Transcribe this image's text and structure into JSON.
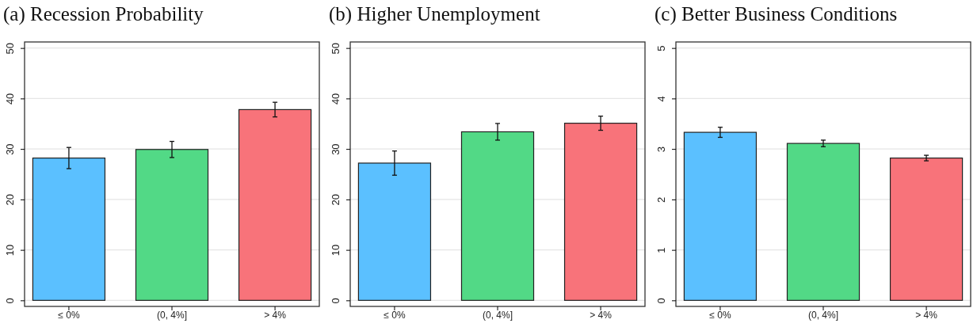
{
  "chart_data": [
    {
      "type": "bar",
      "title": "(a) Recession Probability",
      "categories": [
        "≤ 0%",
        "(0, 4%]",
        "> 4%"
      ],
      "values": [
        28.2,
        29.9,
        37.8
      ],
      "errors": [
        2.1,
        1.6,
        1.45
      ],
      "colors": [
        "#5bc0ff",
        "#52d986",
        "#f8737a"
      ],
      "ylim": [
        -1.2,
        51.2
      ],
      "yticks": [
        0,
        10,
        20,
        30,
        40,
        50
      ],
      "grid": "y"
    },
    {
      "type": "bar",
      "title": "(b) Higher Unemployment",
      "categories": [
        "≤ 0%",
        "(0, 4%]",
        "> 4%"
      ],
      "values": [
        27.2,
        33.4,
        35.1
      ],
      "errors": [
        2.4,
        1.65,
        1.4
      ],
      "colors": [
        "#5bc0ff",
        "#52d986",
        "#f8737a"
      ],
      "ylim": [
        -1.2,
        51.2
      ],
      "yticks": [
        0,
        10,
        20,
        30,
        40,
        50
      ],
      "grid": "y"
    },
    {
      "type": "bar",
      "title": "(c) Better Business Conditions",
      "categories": [
        "≤ 0%",
        "(0, 4%]",
        "> 4%"
      ],
      "values": [
        3.33,
        3.11,
        2.82
      ],
      "errors": [
        0.1,
        0.065,
        0.055
      ],
      "colors": [
        "#5bc0ff",
        "#52d986",
        "#f8737a"
      ],
      "ylim": [
        -0.12,
        5.12
      ],
      "yticks": [
        0,
        1,
        2,
        3,
        4,
        5
      ],
      "grid": "y"
    }
  ]
}
